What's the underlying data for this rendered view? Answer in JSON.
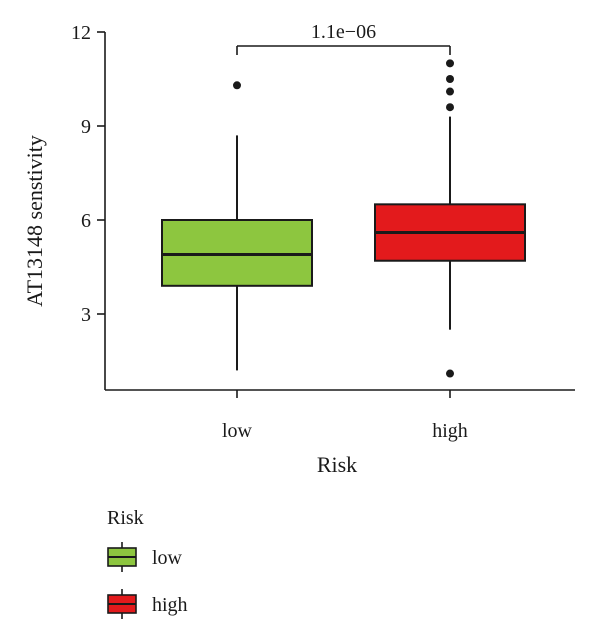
{
  "chart_data": {
    "type": "box",
    "xlabel": "Risk",
    "ylabel": "AT13148 senstivity",
    "ylim": [
      0,
      12
    ],
    "yticks": [
      3,
      6,
      9,
      12
    ],
    "categories": [
      "low",
      "high"
    ],
    "boxes": [
      {
        "group": "low",
        "whisker_low": 1.2,
        "q1": 3.9,
        "median": 4.9,
        "q3": 6.0,
        "whisker_high": 8.7,
        "outliers": [
          10.3
        ],
        "color": "#8dc63f"
      },
      {
        "group": "high",
        "whisker_low": 2.5,
        "q1": 4.7,
        "median": 5.6,
        "q3": 6.5,
        "whisker_high": 9.3,
        "outliers": [
          1.1,
          9.6,
          10.1,
          10.5,
          11.0
        ],
        "color": "#e31a1c"
      }
    ],
    "annotation": "1.1e−06",
    "legend": {
      "title": "Risk",
      "items": [
        {
          "label": "low",
          "color": "#8dc63f"
        },
        {
          "label": "high",
          "color": "#e31a1c"
        }
      ]
    }
  }
}
